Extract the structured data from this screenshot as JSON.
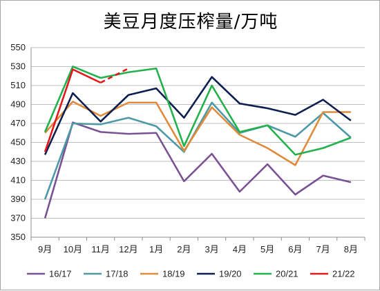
{
  "chart_data": {
    "type": "line",
    "title": "美豆月度压榨量/万吨",
    "categories": [
      "9月",
      "10月",
      "11月",
      "12月",
      "1月",
      "2月",
      "3月",
      "4月",
      "5月",
      "6月",
      "7月",
      "8月"
    ],
    "ylim": [
      350,
      550
    ],
    "yticks": [
      350,
      370,
      390,
      410,
      430,
      450,
      470,
      490,
      510,
      530,
      550
    ],
    "grid": "horizontal",
    "legend_position": "bottom",
    "series": [
      {
        "name": "16/17",
        "color": "#7a5195",
        "style": "solid",
        "values": [
          370,
          471,
          461,
          459,
          460,
          409,
          438,
          398,
          427,
          395,
          415,
          408
        ]
      },
      {
        "name": "17/18",
        "color": "#4d9aa6",
        "style": "solid",
        "values": [
          390,
          470,
          469,
          476,
          467,
          440,
          492,
          460,
          468,
          456,
          481,
          455
        ]
      },
      {
        "name": "18/19",
        "color": "#e08a3a",
        "style": "solid",
        "values": [
          460,
          493,
          478,
          492,
          492,
          441,
          487,
          458,
          444,
          426,
          482,
          482
        ]
      },
      {
        "name": "19/20",
        "color": "#0d1f4f",
        "style": "solid",
        "values": [
          437,
          502,
          472,
          500,
          507,
          476,
          519,
          491,
          486,
          479,
          495,
          473
        ]
      },
      {
        "name": "20/21",
        "color": "#22b14c",
        "style": "solid",
        "values": [
          461,
          530,
          518,
          524,
          528,
          446,
          510,
          461,
          468,
          437,
          444,
          455
        ]
      },
      {
        "name": "21/22",
        "color": "#e3181c",
        "style": "solid+dashed",
        "values": [
          440,
          527,
          513,
          528,
          null,
          null,
          null,
          null,
          null,
          null,
          null,
          null
        ],
        "dashed_from_index": 2
      }
    ]
  }
}
